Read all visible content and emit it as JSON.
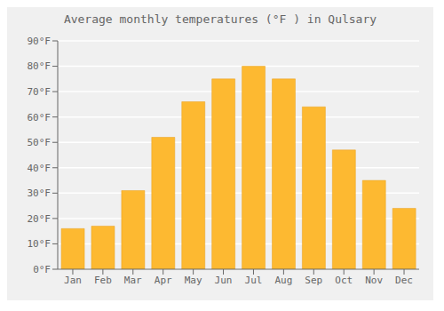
{
  "chart_data": {
    "type": "bar",
    "title": "Average monthly temperatures (°F ) in Qulsary",
    "categories": [
      "Jan",
      "Feb",
      "Mar",
      "Apr",
      "May",
      "Jun",
      "Jul",
      "Aug",
      "Sep",
      "Oct",
      "Nov",
      "Dec"
    ],
    "values": [
      16,
      17,
      31,
      52,
      66,
      75,
      80,
      75,
      64,
      47,
      35,
      24
    ],
    "color": "#FDB931",
    "ylim": [
      0,
      90
    ],
    "yticks": [
      {
        "value": 0,
        "label": "0°F"
      },
      {
        "value": 10,
        "label": "10°F"
      },
      {
        "value": 20,
        "label": "20°F"
      },
      {
        "value": 30,
        "label": "30°F"
      },
      {
        "value": 40,
        "label": "40°F"
      },
      {
        "value": 50,
        "label": "50°F"
      },
      {
        "value": 60,
        "label": "60°F"
      },
      {
        "value": 70,
        "label": "70°F"
      },
      {
        "value": 80,
        "label": "80°F"
      },
      {
        "value": 90,
        "label": "90°F"
      }
    ],
    "grid": true
  }
}
